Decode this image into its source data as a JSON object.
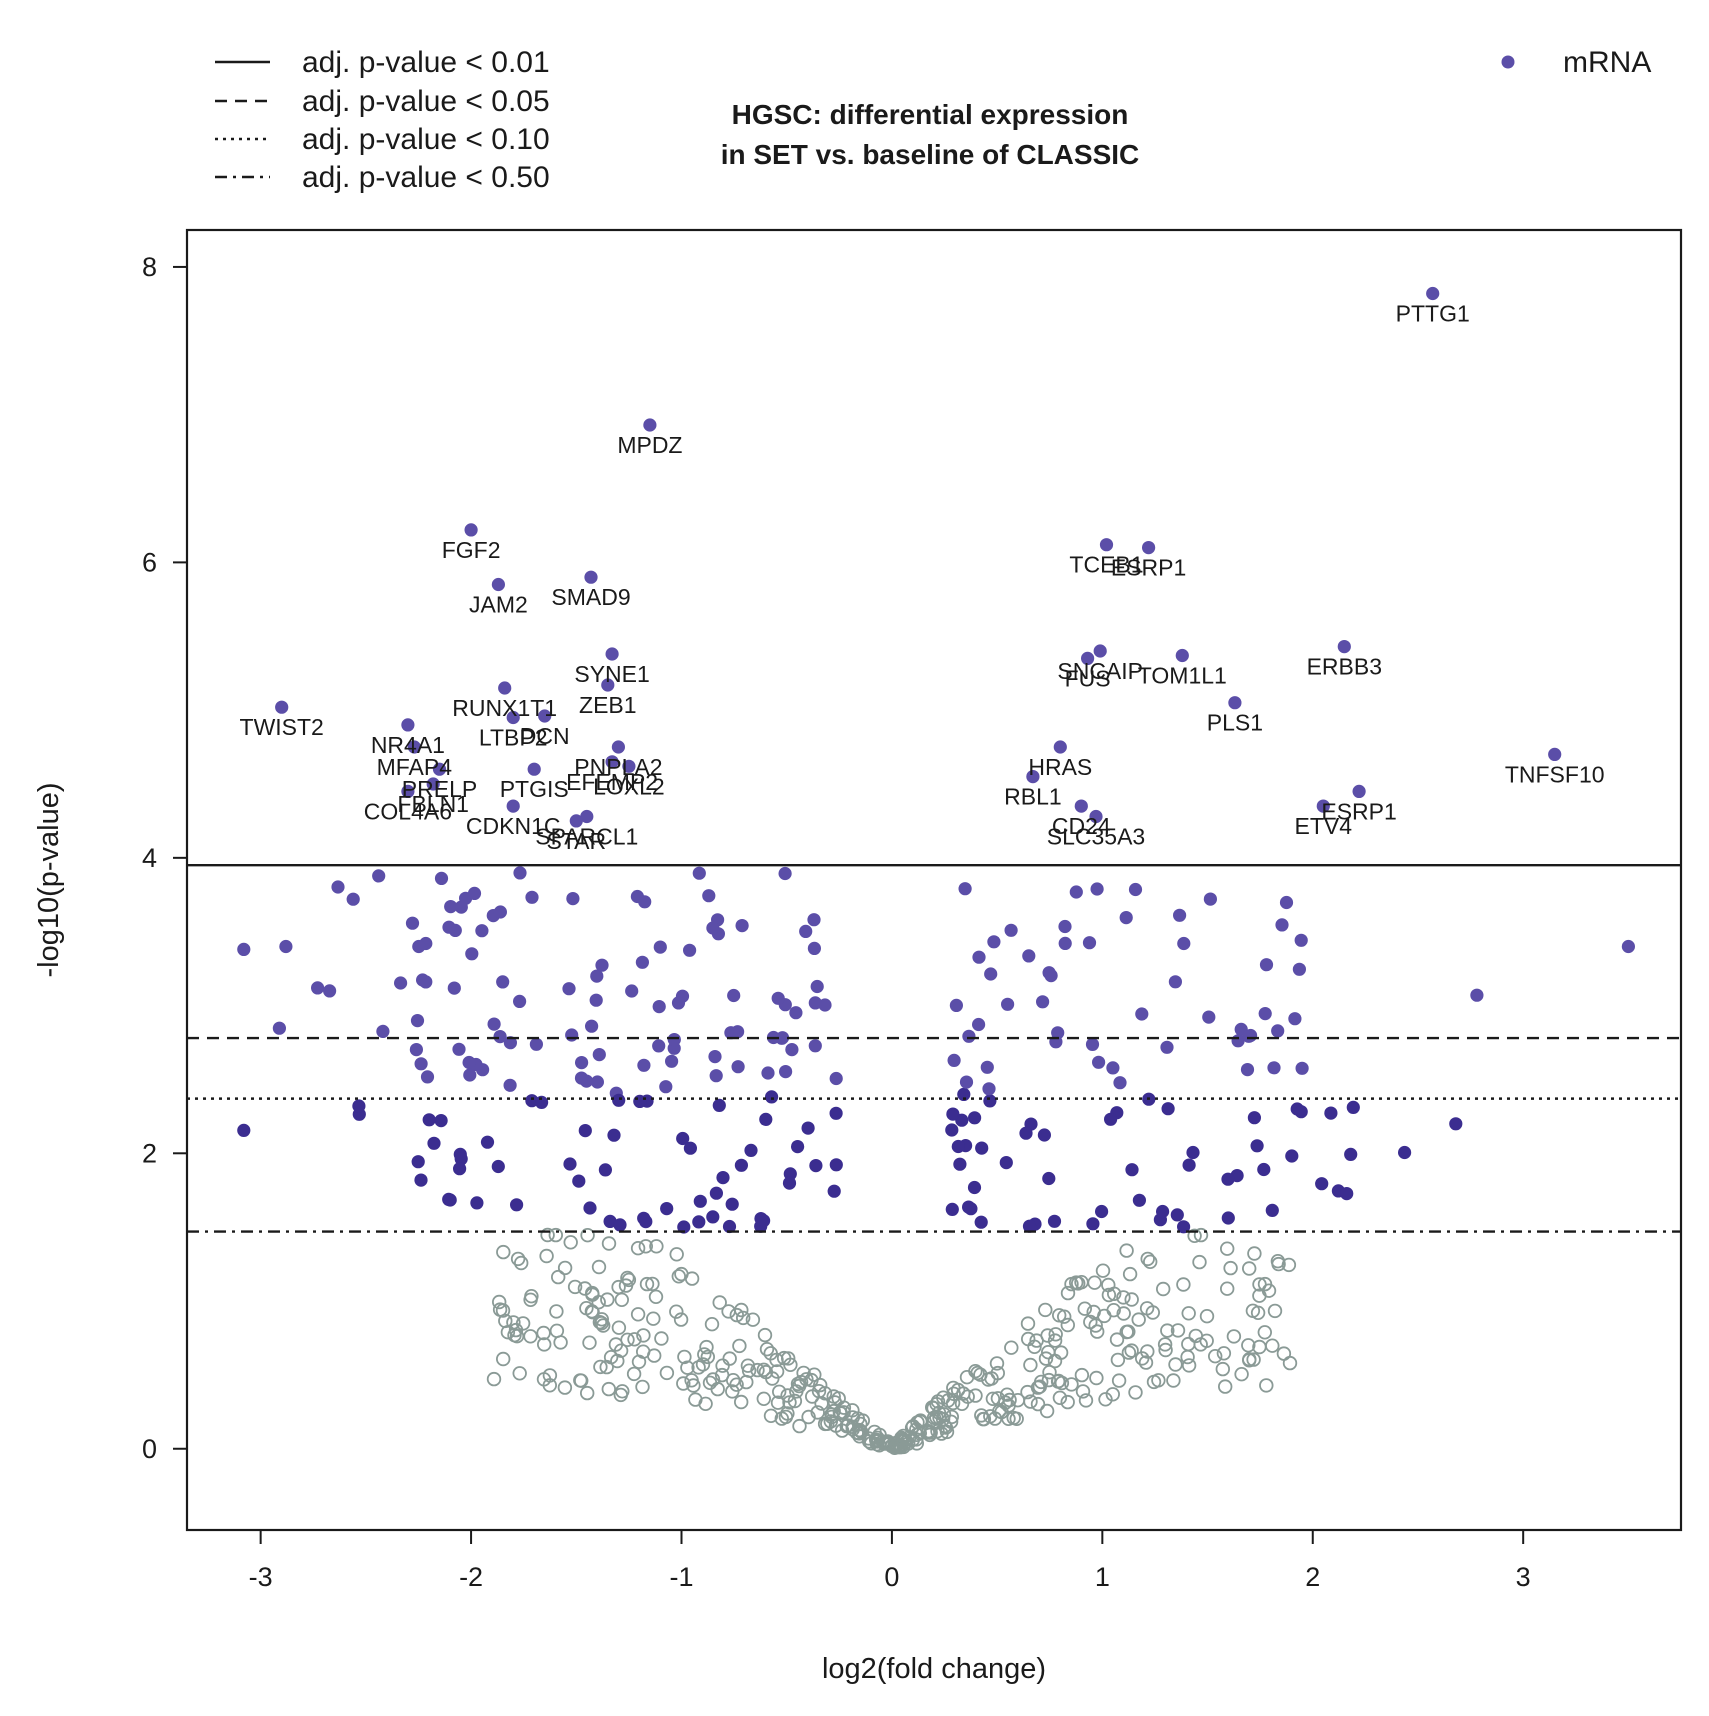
{
  "chart_data": {
    "type": "scatter",
    "title": [
      "HGSC: differential expression",
      "in SET vs. baseline of CLASSIC"
    ],
    "xlabel": "log2(fold change)",
    "ylabel": "-log10(p-value)",
    "xlim": [
      -3.35,
      3.75
    ],
    "ylim": [
      -0.55,
      8.25
    ],
    "xticks": [
      "-3",
      "-2",
      "-1",
      "0",
      "1",
      "2",
      "3"
    ],
    "yticks": [
      "0",
      "2",
      "4",
      "6",
      "8"
    ],
    "grid": false,
    "legend_position": "top-right",
    "colors": {
      "significant": "#5b4ea8",
      "significant_dark": "#3b2d90",
      "non_significant": "#8a9a96"
    },
    "significance_lines": [
      {
        "label": "adj. p-value < 0.01",
        "style": "solid",
        "y": 3.95
      },
      {
        "label": "adj. p-value < 0.05",
        "style": "dashed",
        "y": 2.78
      },
      {
        "label": "adj. p-value < 0.10",
        "style": "dotted",
        "y": 2.37
      },
      {
        "label": "adj. p-value < 0.50",
        "style": "dotdash",
        "y": 1.47
      }
    ],
    "series": [
      {
        "name": "mRNA",
        "labeled_points": [
          {
            "gene": "PTTG1",
            "x": 2.57,
            "y": 7.82
          },
          {
            "gene": "MPDZ",
            "x": -1.15,
            "y": 6.93
          },
          {
            "gene": "FGF2",
            "x": -2.0,
            "y": 6.22
          },
          {
            "gene": "TCEB1",
            "x": 1.02,
            "y": 6.12
          },
          {
            "gene": "ESRP1",
            "x": 1.22,
            "y": 6.1
          },
          {
            "gene": "SMAD9",
            "x": -1.43,
            "y": 5.9
          },
          {
            "gene": "JAM2",
            "x": -1.87,
            "y": 5.85
          },
          {
            "gene": "ERBB3",
            "x": 2.15,
            "y": 5.43
          },
          {
            "gene": "SNCAIP",
            "x": 0.99,
            "y": 5.4
          },
          {
            "gene": "FUS",
            "x": 0.93,
            "y": 5.35
          },
          {
            "gene": "TOM1L1",
            "x": 1.38,
            "y": 5.37
          },
          {
            "gene": "SYNE1",
            "x": -1.33,
            "y": 5.38
          },
          {
            "gene": "ZEB1",
            "x": -1.35,
            "y": 5.17
          },
          {
            "gene": "RUNX1T1",
            "x": -1.84,
            "y": 5.15
          },
          {
            "gene": "PLS1",
            "x": 1.63,
            "y": 5.05
          },
          {
            "gene": "TWIST2",
            "x": -2.9,
            "y": 5.02
          },
          {
            "gene": "LTBP2",
            "x": -1.8,
            "y": 4.95
          },
          {
            "gene": "DCN",
            "x": -1.65,
            "y": 4.96
          },
          {
            "gene": "NR4A1",
            "x": -2.3,
            "y": 4.9
          },
          {
            "gene": "MFAP4",
            "x": -2.27,
            "y": 4.75
          },
          {
            "gene": "PRELP",
            "x": -2.15,
            "y": 4.6
          },
          {
            "gene": "PNPLA2",
            "x": -1.3,
            "y": 4.75
          },
          {
            "gene": "LOXL2",
            "x": -1.25,
            "y": 4.62
          },
          {
            "gene": "PTGIS",
            "x": -1.7,
            "y": 4.6
          },
          {
            "gene": "COL4A6",
            "x": -2.3,
            "y": 4.45
          },
          {
            "gene": "EFEMP2",
            "x": -1.33,
            "y": 4.65
          },
          {
            "gene": "FBLN1",
            "x": -2.18,
            "y": 4.5
          },
          {
            "gene": "TNFSF10",
            "x": 3.15,
            "y": 4.7
          },
          {
            "gene": "HRAS",
            "x": 0.8,
            "y": 4.75
          },
          {
            "gene": "RBL1",
            "x": 0.67,
            "y": 4.55
          },
          {
            "gene": "ESRP1",
            "x": 2.22,
            "y": 4.45
          },
          {
            "gene": "ETV4",
            "x": 2.05,
            "y": 4.35
          },
          {
            "gene": "CD24",
            "x": 0.9,
            "y": 4.35
          },
          {
            "gene": "SLC35A3",
            "x": 0.97,
            "y": 4.28
          },
          {
            "gene": "CDKN1C",
            "x": -1.8,
            "y": 4.35
          },
          {
            "gene": "SPARCL1",
            "x": -1.45,
            "y": 4.28
          },
          {
            "gene": "STAR",
            "x": -1.5,
            "y": 4.25
          }
        ]
      }
    ]
  }
}
